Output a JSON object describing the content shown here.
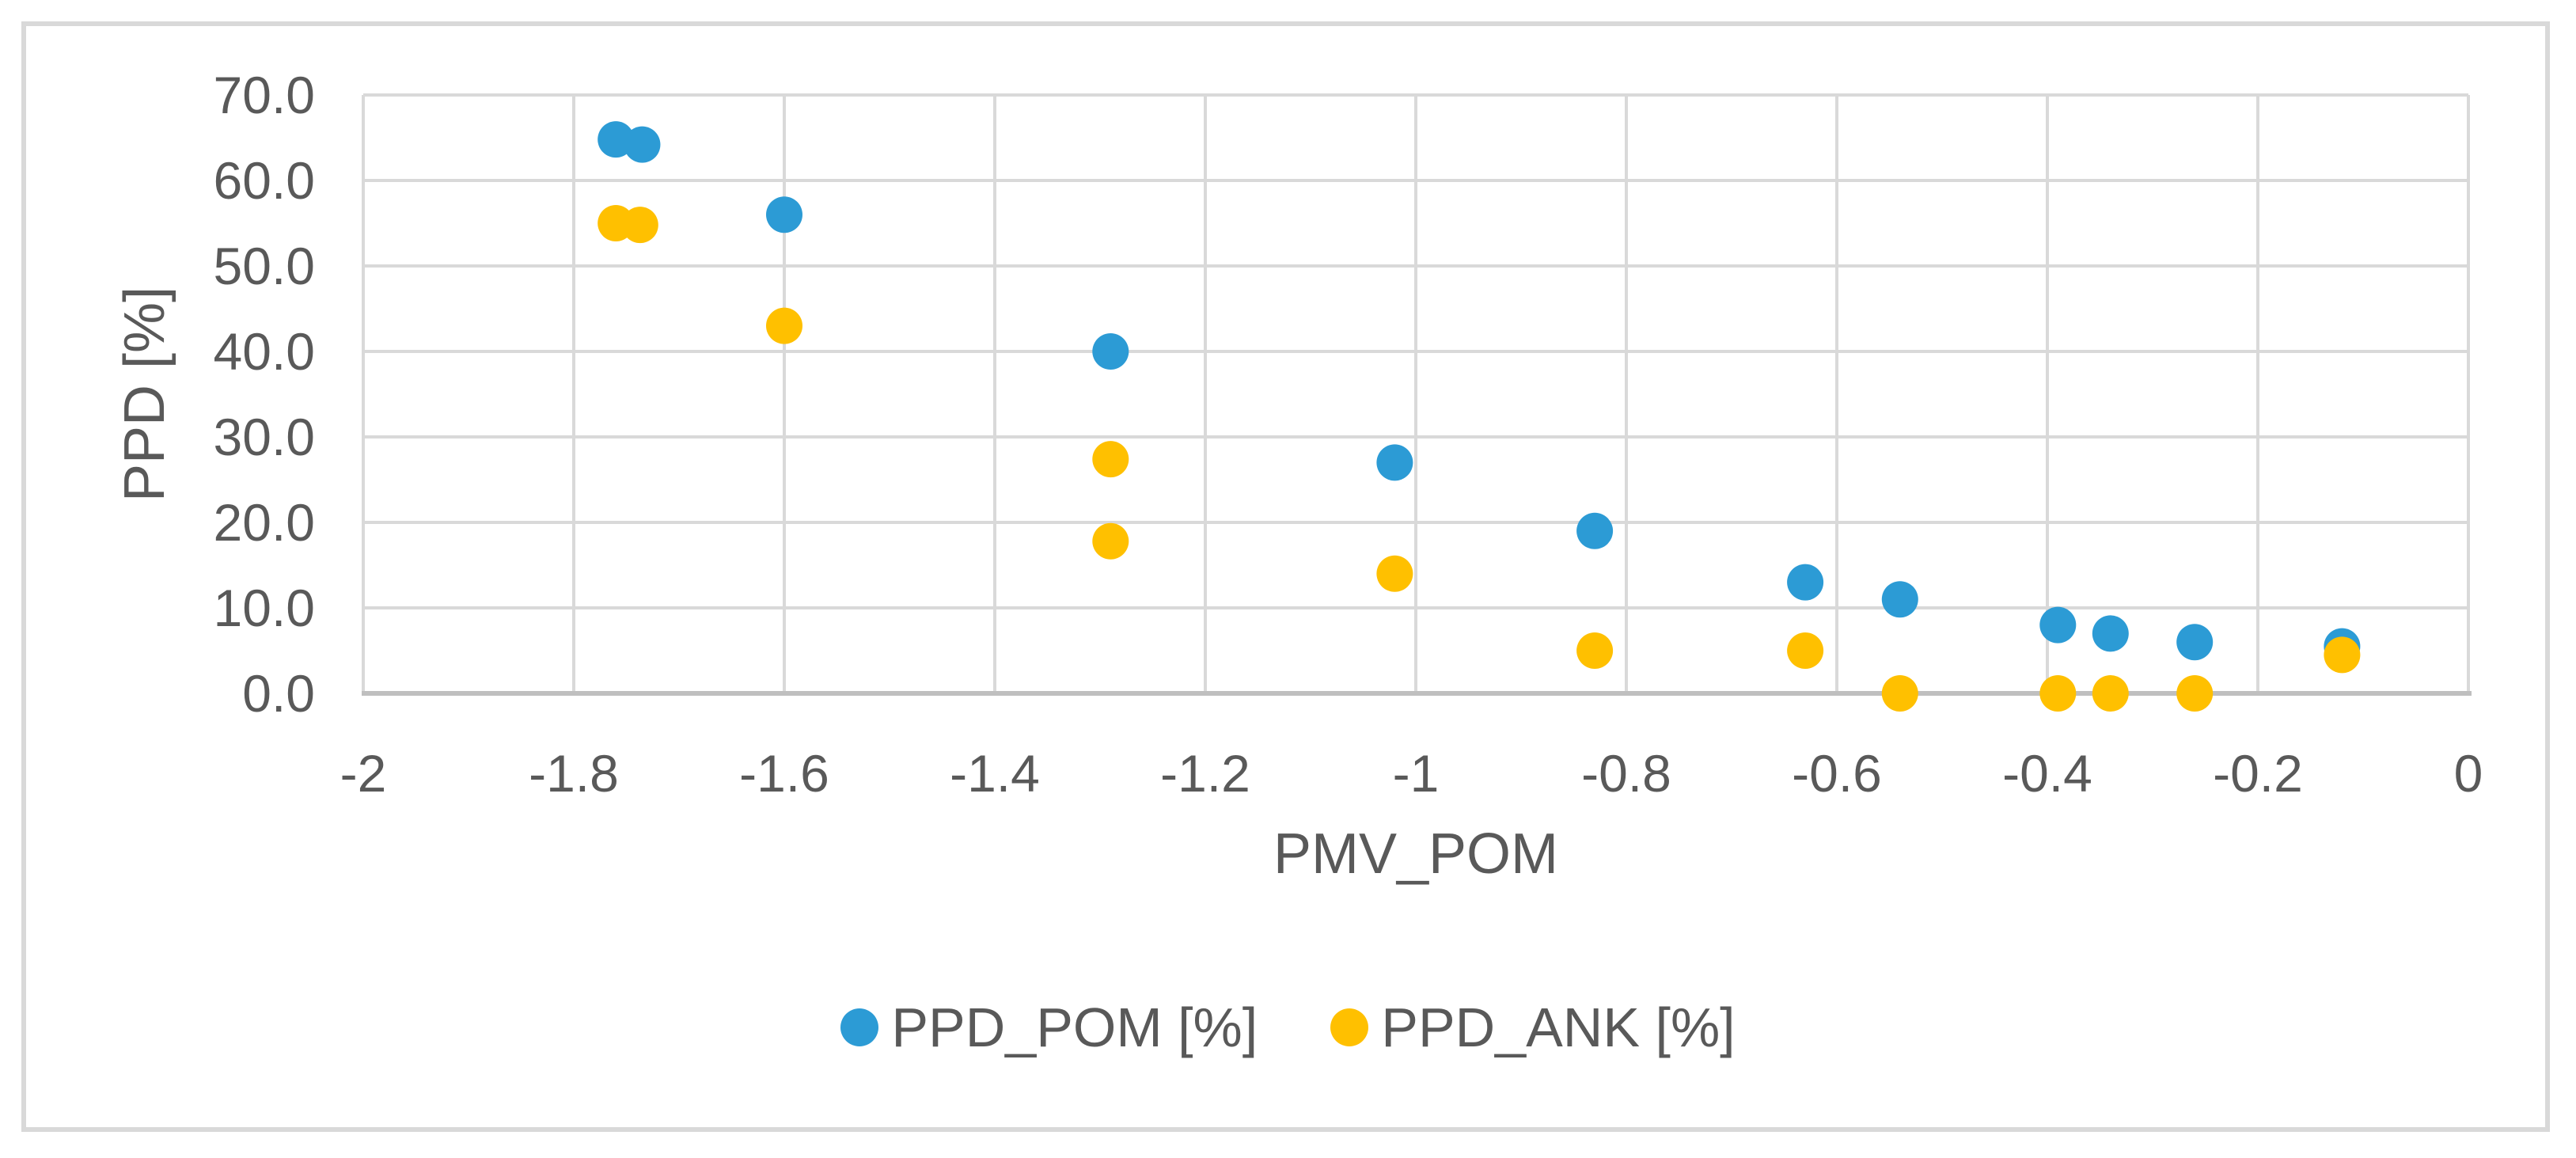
{
  "chart_data": {
    "type": "scatter",
    "title": "",
    "xlabel": "PMV_POM",
    "ylabel": "PPD [%]",
    "xlim": [
      -2,
      0
    ],
    "ylim": [
      0,
      70
    ],
    "grid": true,
    "legend_position": "bottom-center",
    "x_ticks": [
      -2,
      -1.8,
      -1.6,
      -1.4,
      -1.2,
      -1,
      -0.8,
      -0.6,
      -0.4,
      -0.2,
      0
    ],
    "x_tick_labels": [
      "-2",
      "-1.8",
      "-1.6",
      "-1.4",
      "-1.2",
      "-1",
      "-0.8",
      "-0.6",
      "-0.4",
      "-0.2",
      "0"
    ],
    "y_ticks": [
      0,
      10,
      20,
      30,
      40,
      50,
      60,
      70
    ],
    "y_tick_labels": [
      "0.0",
      "10.0",
      "20.0",
      "30.0",
      "40.0",
      "50.0",
      "60.0",
      "70.0"
    ],
    "series": [
      {
        "name": "PPD_POM [%]",
        "color": "#2C9BD5",
        "points": [
          [
            -1.76,
            64.8
          ],
          [
            -1.735,
            64.2
          ],
          [
            -1.6,
            56.0
          ],
          [
            -1.29,
            40.0
          ],
          [
            -1.02,
            27.0
          ],
          [
            -0.83,
            19.0
          ],
          [
            -0.63,
            13.0
          ],
          [
            -0.54,
            11.0
          ],
          [
            -0.39,
            8.0
          ],
          [
            -0.34,
            7.0
          ],
          [
            -0.26,
            6.0
          ],
          [
            -0.12,
            5.5
          ]
        ]
      },
      {
        "name": "PPD_ANK [%]",
        "color": "#FFC000",
        "points": [
          [
            -1.76,
            55.0
          ],
          [
            -1.737,
            54.8
          ],
          [
            -1.6,
            43.0
          ],
          [
            -1.29,
            27.4
          ],
          [
            -1.29,
            17.8
          ],
          [
            -1.02,
            14.0
          ],
          [
            -0.83,
            5.0
          ],
          [
            -0.63,
            5.0
          ],
          [
            -0.54,
            0.0
          ],
          [
            -0.39,
            0.0
          ],
          [
            -0.34,
            0.0
          ],
          [
            -0.26,
            0.0
          ],
          [
            -0.12,
            4.5
          ]
        ]
      }
    ],
    "colors": {
      "grid": "#D9D9D9",
      "axis_line": "#BFBFBF",
      "text": "#595959",
      "frame_border": "#D9D9D9"
    }
  }
}
